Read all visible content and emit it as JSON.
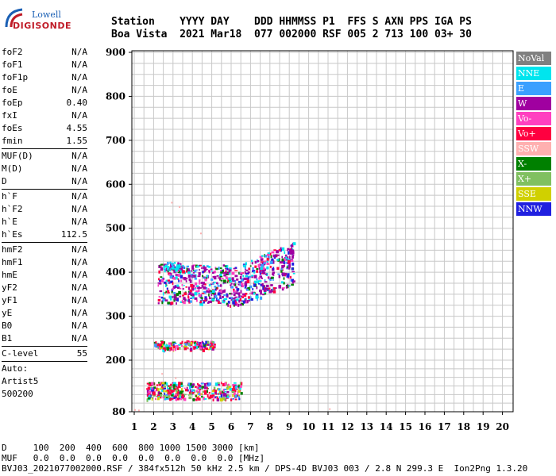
{
  "logo": {
    "line1": "Lowell",
    "line2": "DIGISONDE"
  },
  "header": {
    "line1": "Station    YYYY DAY    DDD HHMMSS P1  FFS S AXN PPS IGA PS",
    "line2": "Boa Vista  2021 Mar18  077 002000 RSF 005 2 713 100 03+ 30"
  },
  "params": {
    "group1": [
      {
        "k": "foF2",
        "v": "N/A"
      },
      {
        "k": "foF1",
        "v": "N/A"
      },
      {
        "k": "foF1p",
        "v": "N/A"
      },
      {
        "k": "foE",
        "v": "N/A"
      },
      {
        "k": "foEp",
        "v": "0.40"
      },
      {
        "k": "fxI",
        "v": "N/A"
      },
      {
        "k": "foEs",
        "v": "4.55"
      },
      {
        "k": "fmin",
        "v": "1.55"
      }
    ],
    "group2": [
      {
        "k": "MUF(D)",
        "v": "N/A"
      },
      {
        "k": "M(D)",
        "v": "N/A"
      },
      {
        "k": "D",
        "v": "N/A"
      }
    ],
    "group3": [
      {
        "k": "h`F",
        "v": "N/A"
      },
      {
        "k": "h`F2",
        "v": "N/A"
      },
      {
        "k": "h`E",
        "v": "N/A"
      },
      {
        "k": "h`Es",
        "v": "112.5"
      }
    ],
    "group4": [
      {
        "k": "hmF2",
        "v": "N/A"
      },
      {
        "k": "hmF1",
        "v": "N/A"
      },
      {
        "k": "hmE",
        "v": "N/A"
      },
      {
        "k": "yF2",
        "v": "N/A"
      },
      {
        "k": "yF1",
        "v": "N/A"
      },
      {
        "k": "yE",
        "v": "N/A"
      },
      {
        "k": "B0",
        "v": "N/A"
      },
      {
        "k": "B1",
        "v": "N/A"
      }
    ],
    "group5": [
      {
        "k": "C-level",
        "v": "55"
      }
    ]
  },
  "auto": {
    "line1": "Auto:",
    "line2": "Artist5",
    "line3": "500200"
  },
  "legend": [
    {
      "label": "NoVal",
      "color": "#808080"
    },
    {
      "label": "NNE",
      "color": "#00e5ee"
    },
    {
      "label": "E",
      "color": "#3aa0ff"
    },
    {
      "label": "W",
      "color": "#a000a0"
    },
    {
      "label": "Vo-",
      "color": "#ff40c0"
    },
    {
      "label": "Vo+",
      "color": "#ff0040"
    },
    {
      "label": "SSW",
      "color": "#ffb0b0"
    },
    {
      "label": "X-",
      "color": "#008000"
    },
    {
      "label": "X+",
      "color": "#80c060"
    },
    {
      "label": "SSE",
      "color": "#d0d000"
    },
    {
      "label": "NNW",
      "color": "#2020e0"
    }
  ],
  "footer": {
    "line1": "D     100  200  400  600  800 1000 1500 3000 [km]",
    "line2": "MUF   0.0  0.0  0.0  0.0  0.0  0.0  0.0  0.0 [MHz]",
    "line3": "BVJ03_2021077002000.RSF / 384fx512h 50 kHz 2.5 km / DPS-4D BVJ03 003 / 2.8 N 299.3 E  Ion2Png 1.3.20"
  },
  "chart_data": {
    "type": "scatter",
    "x_ticks": [
      "1",
      "2",
      "3",
      "4",
      "5",
      "6",
      "7",
      "8",
      "9",
      "10",
      "11",
      "12",
      "13",
      "14",
      "15",
      "16",
      "17",
      "18",
      "19",
      "20"
    ],
    "y_ticks": [
      "80",
      "200",
      "300",
      "400",
      "500",
      "600",
      "700",
      "800",
      "900"
    ],
    "xlim": [
      0.8,
      20.2
    ],
    "ylim": [
      80,
      900
    ],
    "grid": true,
    "regions": [
      {
        "name": "F-layer trace",
        "x": [
          2.2,
          5.8
        ],
        "y": [
          330,
          420
        ],
        "dominant": "W"
      },
      {
        "name": "F-layer trace",
        "x": [
          5.8,
          9.2
        ],
        "y": [
          315,
          470
        ],
        "dominant": "W"
      },
      {
        "name": "F-layer upper",
        "x": [
          2.5,
          3.5
        ],
        "y": [
          405,
          425
        ],
        "dominant": "NNE"
      },
      {
        "name": "Es multiple",
        "x": [
          2.0,
          5.1
        ],
        "y": [
          225,
          245
        ],
        "dominant": "Vo+"
      },
      {
        "name": "Es trace",
        "x": [
          1.6,
          6.5
        ],
        "y": [
          110,
          150
        ],
        "dominant": "Vo+"
      }
    ]
  }
}
